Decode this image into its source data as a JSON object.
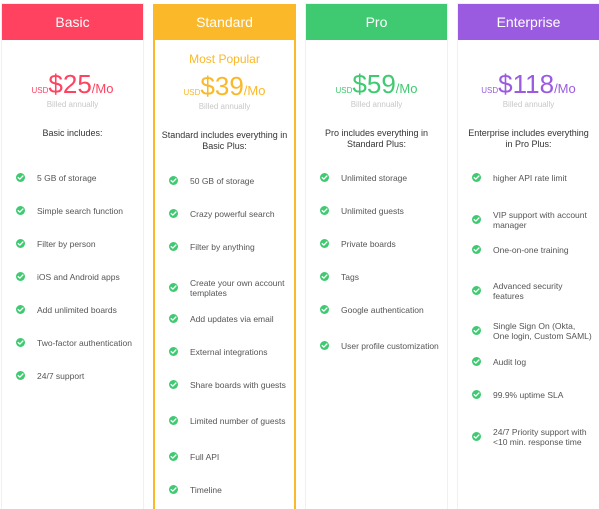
{
  "plans": [
    {
      "name": "Basic",
      "color": "#fe4260",
      "popular": "",
      "currency": "USD",
      "amount": "$25",
      "period": "/Mo",
      "billed": "Billed annually",
      "includes": "Basic includes:",
      "features": [
        "5 GB of storage",
        "Simple search function",
        "Filter by person",
        "iOS and Android apps",
        "Add unlimited boards",
        "Two-factor authentication",
        "24/7 support"
      ]
    },
    {
      "name": "Standard",
      "color": "#fbb829",
      "popular": "Most Popular",
      "currency": "USD",
      "amount": "$39",
      "period": "/Mo",
      "billed": "Billed annually",
      "includes": "Standard includes everything in Basic Plus:",
      "features": [
        "50 GB of storage",
        "Crazy powerful search",
        "Filter by anything",
        "Create your own account templates",
        "Add updates via email",
        "External integrations",
        "Share boards with guests",
        "Limited number of guests",
        "Full API",
        "Timeline"
      ]
    },
    {
      "name": "Pro",
      "color": "#3fca71",
      "popular": "",
      "currency": "USD",
      "amount": "$59",
      "period": "/Mo",
      "billed": "Billed annually",
      "includes": "Pro includes everything in Standard Plus:",
      "features": [
        "Unlimited storage",
        "Unlimited guests",
        "Private boards",
        "Tags",
        "Google authentication",
        "User profile customization"
      ]
    },
    {
      "name": "Enterprise",
      "color": "#9b5be0",
      "popular": "",
      "currency": "USD",
      "amount": "$118",
      "period": "/Mo",
      "billed": "Billed annually",
      "includes": "Enterprise includes everything in Pro Plus:",
      "features": [
        "higher API rate limit",
        "VIP support with account manager",
        "One-on-one training",
        "Advanced security features",
        "Single Sign On (Okta, One login, Custom SAML)",
        "Audit log",
        "99.9% uptime SLA",
        "24/7 Priority support with <10 min. response time"
      ]
    }
  ],
  "check_icon_color": "#3fca71"
}
